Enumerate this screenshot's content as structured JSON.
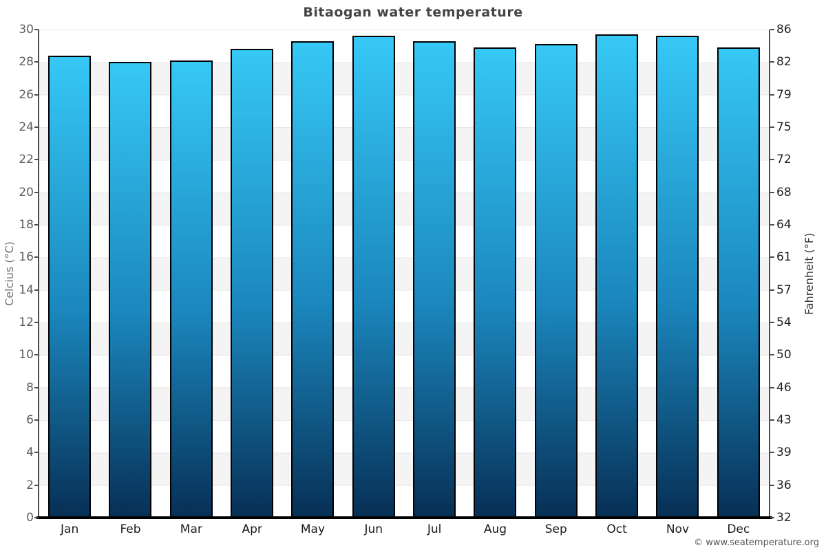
{
  "title": "Bitaogan water temperature",
  "copyright": "© www.seatemperature.org",
  "axes": {
    "left_title": "Celcius (°C)",
    "right_title": "Fahrenheit (°F)"
  },
  "chart_data": {
    "type": "bar",
    "title": "Bitaogan water temperature",
    "categories": [
      "Jan",
      "Feb",
      "Mar",
      "Apr",
      "May",
      "Jun",
      "Jul",
      "Aug",
      "Sep",
      "Oct",
      "Nov",
      "Dec"
    ],
    "values": [
      28.4,
      28.0,
      28.1,
      28.8,
      29.3,
      29.6,
      29.3,
      28.9,
      29.1,
      29.7,
      29.6,
      28.9
    ],
    "unit": "°C",
    "ylabel_left": "Celcius (°C)",
    "ylabel_right": "Fahrenheit (°F)",
    "ylim": [
      0,
      30
    ],
    "ytick_step": 2,
    "yticks_celsius": [
      "30",
      "28",
      "26",
      "24",
      "22",
      "20",
      "18",
      "16",
      "14",
      "12",
      "10",
      "8",
      "6",
      "4",
      "2",
      "0"
    ],
    "yticks_fahrenheit": [
      "86",
      "82",
      "79",
      "75",
      "72",
      "68",
      "64",
      "61",
      "57",
      "54",
      "50",
      "46",
      "43",
      "39",
      "36",
      "32"
    ],
    "grid": "horizontal-bands",
    "legend": "none",
    "colors": {
      "bar_top": "#36c8f6",
      "bar_mid": "#1b87bd",
      "bar_bottom": "#072f55",
      "bar_border": "#000000",
      "band_light": "#ffffff",
      "band_dark": "#f4f4f4",
      "gridline": "#e6e6e6",
      "title_text": "#454545"
    }
  }
}
